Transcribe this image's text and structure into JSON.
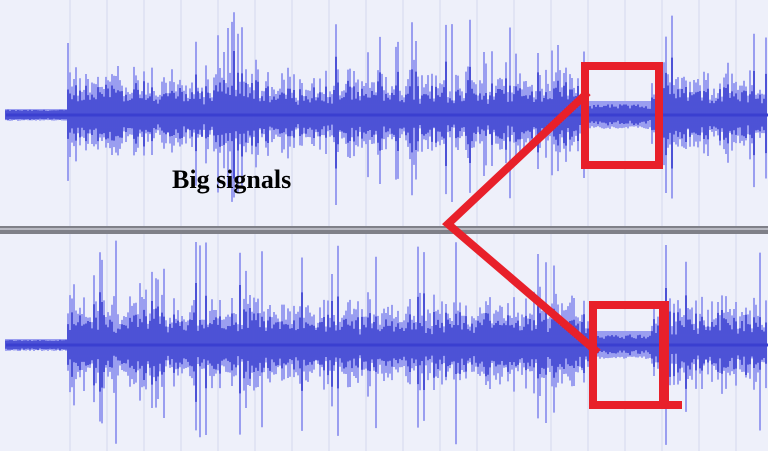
{
  "annotation": {
    "text": "Big signals"
  }
}
